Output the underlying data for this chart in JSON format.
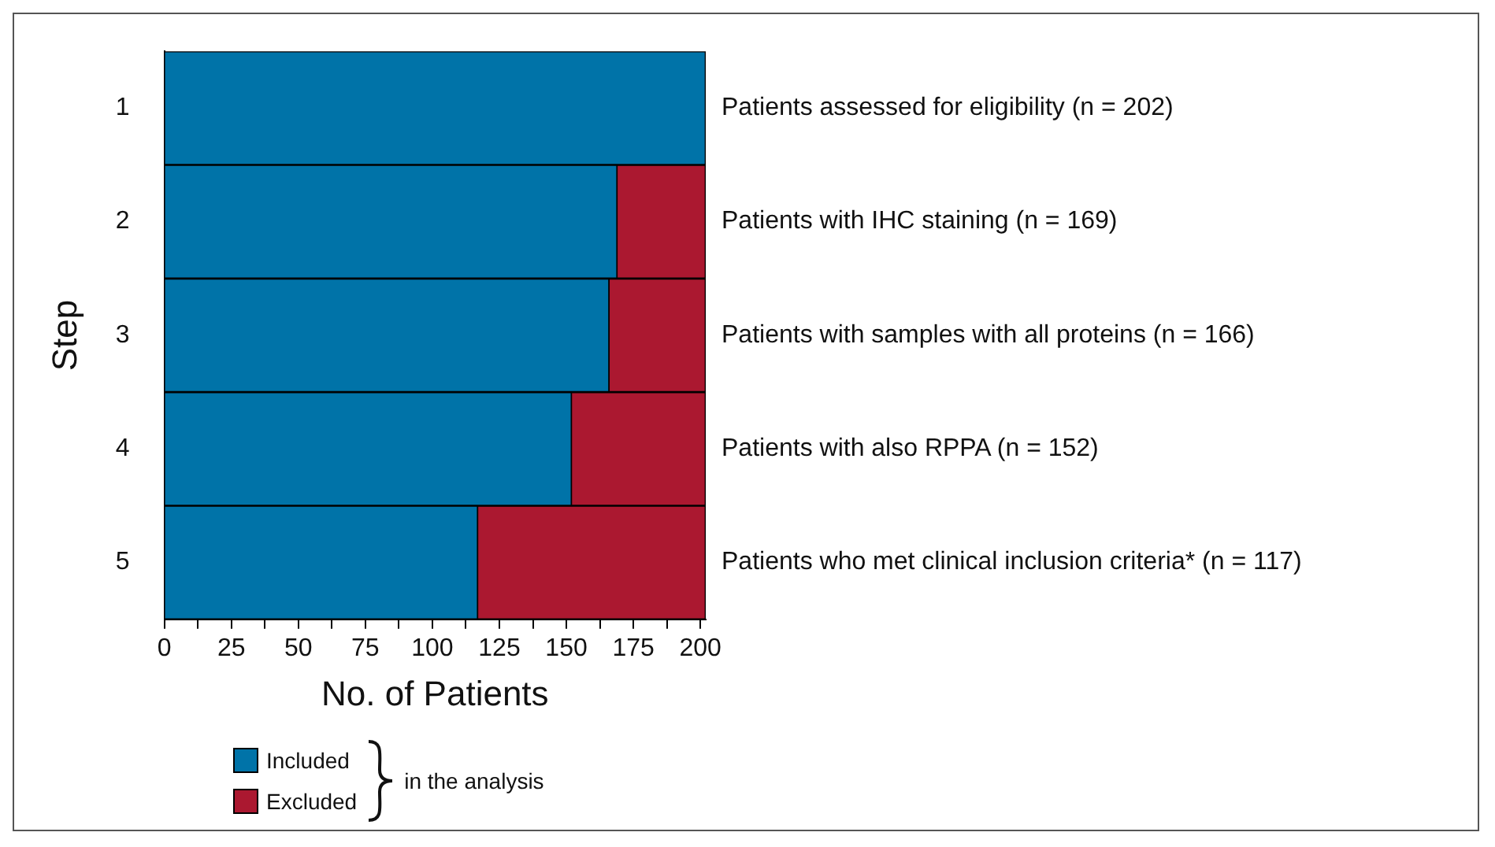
{
  "chart_data": {
    "type": "bar",
    "orientation": "horizontal",
    "stacked": true,
    "ylabel": "Step",
    "xlabel": "No. of Patients",
    "legend_title": "in the analysis",
    "legend": "bottom left",
    "grid": false,
    "categories": [
      "1",
      "2",
      "3",
      "4",
      "5"
    ],
    "series": [
      {
        "name": "Included",
        "color": "#0073a8",
        "values": [
          202,
          169,
          166,
          152,
          117
        ]
      },
      {
        "name": "Excluded",
        "color": "#ab1830",
        "values": [
          0,
          33,
          36,
          50,
          85
        ]
      }
    ],
    "xlim": [
      0,
      202
    ],
    "xticks": [
      0,
      {
        "value": 12.5,
        "label": null
      },
      25,
      {
        "value": 37.5,
        "label": null
      },
      50,
      {
        "value": 62.5,
        "label": null
      },
      75,
      {
        "value": 87.5,
        "label": null
      },
      100,
      {
        "value": 112.5,
        "label": null
      },
      125,
      {
        "value": 137.5,
        "label": null
      },
      150,
      {
        "value": 162.5,
        "label": null
      },
      175,
      {
        "value": 187.5,
        "label": null
      },
      200
    ],
    "annotations": [
      "Patients assessed for eligibility (n = 202)",
      "Patients with IHC staining (n = 169)",
      "Patients with samples with all proteins (n = 166)",
      "Patients with also RPPA (n = 152)",
      "Patients who met clinical inclusion criteria* (n = 117)"
    ]
  }
}
